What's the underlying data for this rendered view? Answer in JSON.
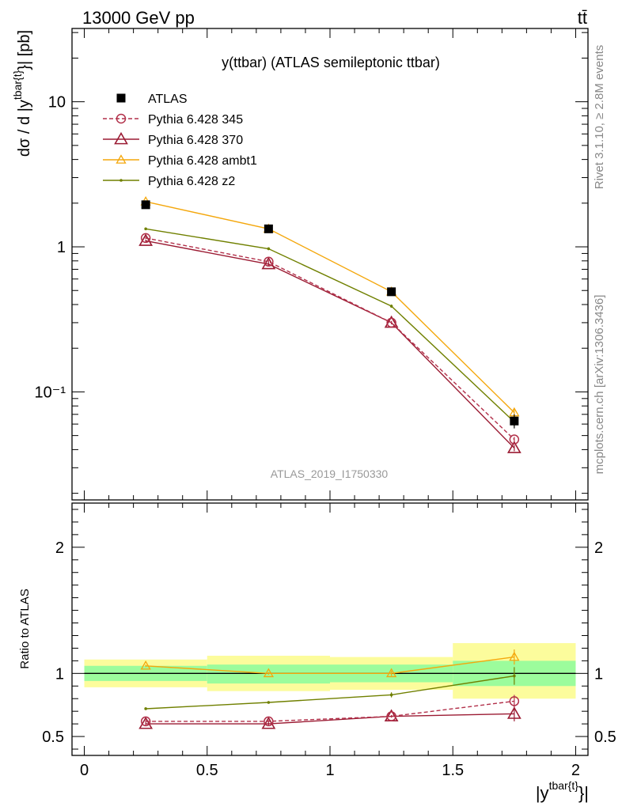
{
  "header": {
    "energy_label": "13000 GeV pp",
    "process_label": "tt̄"
  },
  "side_text": {
    "rivet": "Rivet 3.1.10, ≥ 2.8M events",
    "mcplots": "mcplots.cern.ch [arXiv:1306.3436]"
  },
  "watermark": "ATLAS_2019_I1750330",
  "chart_data": [
    {
      "type": "line",
      "title": "y(ttbar) (ATLAS semileptonic ttbar)",
      "ylabel": "dσ / d |y^{tbar{t}}| [pb]",
      "yscale": "log",
      "ylim": [
        0.018,
        32
      ],
      "xlim": [
        -0.05,
        2.05
      ],
      "y_tick_labels": [
        "10⁻¹",
        "1",
        "10"
      ],
      "x": [
        0.25,
        0.75,
        1.25,
        1.75
      ],
      "legend_position": "top-left",
      "series": [
        {
          "name": "ATLAS",
          "color": "#000000",
          "marker": "filled-square",
          "values": [
            1.95,
            1.33,
            0.49,
            0.063
          ],
          "errors": [
            0.09,
            0.06,
            0.022,
            0.007
          ]
        },
        {
          "name": "Pythia 6.428 345",
          "color": "#b2304a",
          "marker": "open-circle",
          "dashed": true,
          "values": [
            1.15,
            0.79,
            0.3,
            0.047
          ],
          "errors": [
            0.02,
            0.02,
            0.008,
            0.002
          ]
        },
        {
          "name": "Pythia 6.428 370",
          "color": "#9b1b33",
          "marker": "open-triangle",
          "values": [
            1.1,
            0.76,
            0.3,
            0.041
          ],
          "errors": [
            0.02,
            0.02,
            0.008,
            0.002
          ]
        },
        {
          "name": "Pythia 6.428 ambt1",
          "color": "#f4a70c",
          "marker": "small-open-triangle",
          "values": [
            2.05,
            1.33,
            0.49,
            0.072
          ],
          "errors": [
            0.04,
            0.03,
            0.012,
            0.005
          ]
        },
        {
          "name": "Pythia 6.428 z2",
          "color": "#708000",
          "marker": "dot",
          "values": [
            1.33,
            0.97,
            0.39,
            0.062
          ],
          "errors": [
            0.02,
            0.02,
            0.01,
            0.004
          ]
        }
      ]
    },
    {
      "type": "line",
      "ylabel": "Ratio to ATLAS",
      "xlabel": "|y^{tbar{t}}|",
      "ylim": [
        0.35,
        2.35
      ],
      "y_ticks": [
        0.5,
        1,
        2
      ],
      "x_ticks": [
        0,
        0.5,
        1,
        1.5,
        2
      ],
      "x_tick_labels": [
        "0",
        "0.5",
        "1",
        "1.5",
        "2"
      ],
      "reference_line": 1,
      "bins": [
        [
          0,
          0.5
        ],
        [
          0.5,
          1
        ],
        [
          1,
          1.5
        ],
        [
          1.5,
          2
        ]
      ],
      "uncertainty_bands": {
        "inner_color": "#9cfc9c",
        "outer_color": "#fcfc9c",
        "inner": [
          [
            0.94,
            1.06
          ],
          [
            0.92,
            1.07
          ],
          [
            0.93,
            1.07
          ],
          [
            0.9,
            1.1
          ]
        ],
        "outer": [
          [
            0.89,
            1.11
          ],
          [
            0.86,
            1.14
          ],
          [
            0.87,
            1.13
          ],
          [
            0.8,
            1.24
          ]
        ]
      },
      "x": [
        0.25,
        0.75,
        1.25,
        1.75
      ],
      "series": [
        {
          "name": "Pythia 6.428 345",
          "color": "#b2304a",
          "marker": "open-circle",
          "dashed": true,
          "values": [
            0.62,
            0.62,
            0.66,
            0.78
          ],
          "errors": [
            0.01,
            0.01,
            0.01,
            0.05
          ]
        },
        {
          "name": "Pythia 6.428 370",
          "color": "#9b1b33",
          "marker": "open-triangle",
          "values": [
            0.6,
            0.6,
            0.66,
            0.68
          ],
          "errors": [
            0.01,
            0.01,
            0.01,
            0.06
          ]
        },
        {
          "name": "Pythia 6.428 ambt1",
          "color": "#f4a70c",
          "marker": "small-open-triangle",
          "values": [
            1.06,
            1.0,
            1.0,
            1.13
          ],
          "errors": [
            0.01,
            0.01,
            0.02,
            0.06
          ]
        },
        {
          "name": "Pythia 6.428 z2",
          "color": "#708000",
          "marker": "dot",
          "values": [
            0.72,
            0.77,
            0.83,
            0.98
          ],
          "errors": [
            0.01,
            0.01,
            0.02,
            0.07
          ]
        }
      ]
    }
  ]
}
